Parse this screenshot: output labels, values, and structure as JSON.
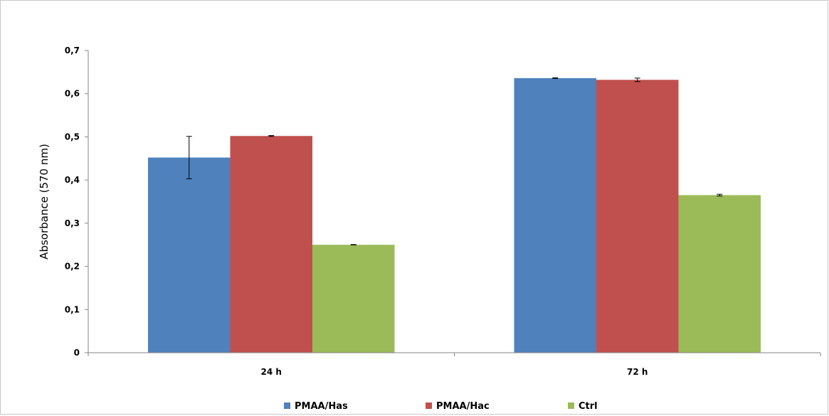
{
  "chart_data": {
    "type": "bar",
    "ylabel": "Absorbance (570 nm)",
    "xlabel": "",
    "categories": [
      "24 h",
      "72 h"
    ],
    "ylim": [
      0,
      0.7
    ],
    "yticks": [
      0,
      0.1,
      0.2,
      0.3,
      0.4,
      0.5,
      0.6,
      0.7
    ],
    "ytick_labels": [
      "0",
      "0,1",
      "0,2",
      "0,3",
      "0,4",
      "0,5",
      "0,6",
      "0,7"
    ],
    "grid": false,
    "legend": "bottom",
    "series": [
      {
        "name": "PMAA/Has",
        "color": "#4f81bd",
        "values": [
          0.452,
          0.636
        ],
        "errors": [
          0.049,
          0.001
        ]
      },
      {
        "name": "PMAA/Hac",
        "color": "#c0504d",
        "values": [
          0.502,
          0.632
        ],
        "errors": [
          0.001,
          0.004
        ]
      },
      {
        "name": "Ctrl",
        "color": "#9bbb59",
        "values": [
          0.25,
          0.365
        ],
        "errors": [
          0.0005,
          0.002
        ]
      }
    ]
  }
}
